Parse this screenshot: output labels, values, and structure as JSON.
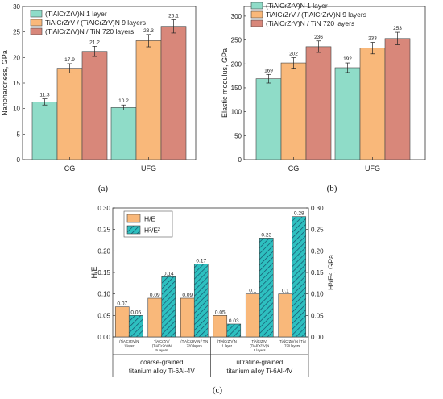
{
  "colors": {
    "teal": "#8fdcc8",
    "orange": "#f9b87a",
    "salmon": "#d8877a",
    "hatch_fill": "#2ec0c0"
  },
  "chart_data": [
    {
      "panel": "(a)",
      "type": "bar",
      "ylabel": "Nanohardness, GPa",
      "ylim": [
        0,
        30
      ],
      "yticks": [
        0,
        5,
        10,
        15,
        20,
        25,
        30
      ],
      "categories": [
        "CG",
        "UFG"
      ],
      "legend_position": "top-left",
      "series": [
        {
          "name": "(TiAlCrZrV)N 1 layer",
          "values": [
            11.3,
            10.2
          ],
          "errors": [
            0.6,
            0.5
          ],
          "labels": [
            "11.3",
            "10.2"
          ]
        },
        {
          "name": "TiAlCrZrV / (TiAlCrZrV)N 9 layers",
          "values": [
            17.9,
            23.3
          ],
          "errors": [
            0.9,
            1.2
          ],
          "labels": [
            "17.9",
            "23.3"
          ]
        },
        {
          "name": "(TiAlCrZrV)N / TiN 720 layers",
          "values": [
            21.2,
            26.1
          ],
          "errors": [
            1.0,
            1.3
          ],
          "labels": [
            "21.2",
            "26.1"
          ]
        }
      ]
    },
    {
      "panel": "(b)",
      "type": "bar",
      "ylabel": "Elastic modulus, GPa",
      "ylim": [
        0,
        320
      ],
      "yticks": [
        0,
        50,
        100,
        150,
        200,
        250,
        300
      ],
      "categories": [
        "CG",
        "UFG"
      ],
      "legend_position": "top-left",
      "series": [
        {
          "name": "(TiAlCrZrV)N 1 layer",
          "values": [
            169,
            192
          ],
          "errors": [
            9,
            10
          ],
          "labels": [
            "169",
            "192"
          ]
        },
        {
          "name": "TiAlCrZrV / (TiAlCrZrV)N 9 layers",
          "values": [
            202,
            233
          ],
          "errors": [
            11,
            12
          ],
          "labels": [
            "202",
            "233"
          ]
        },
        {
          "name": "(TiAlCrZrV)N / TiN 720 layers",
          "values": [
            236,
            253
          ],
          "errors": [
            12,
            13
          ],
          "labels": [
            "236",
            "253"
          ]
        }
      ]
    },
    {
      "panel": "(c)",
      "type": "bar",
      "ylabel": "H/E",
      "ylabel_right": "H³/E², GPa",
      "ylim": [
        0,
        0.3
      ],
      "yticks": [
        "0.00",
        "0.05",
        "0.10",
        "0.15",
        "0.20",
        "0.25",
        "0.30"
      ],
      "yticks_right": [
        "0.00",
        "0.05",
        "0.10",
        "0.15",
        "0.20",
        "0.25",
        "0.30"
      ],
      "ytick_values": [
        0,
        0.05,
        0.1,
        0.15,
        0.2,
        0.25,
        0.3
      ],
      "legend_position": "top-left",
      "categories": [
        [
          "(TiAlCrZrV)N",
          "1 layer"
        ],
        [
          "TiAlCrZrV/",
          "(TiAlCrZrV)N",
          "9 layers"
        ],
        [
          "(TiAlCrZrV)N / TiN",
          "720 layers"
        ],
        [
          "(TiAlCrZrV)N",
          "1 layer"
        ],
        [
          "TiAlCrZrV/",
          "(TiAlCrZrV)N",
          "9 layers"
        ],
        [
          "(TiAlCrZrV)N / TiN",
          "720 layers"
        ]
      ],
      "groups": [
        {
          "lines": [
            "coarse-grained",
            "titanium alloy Ti-6Al-4V"
          ]
        },
        {
          "lines": [
            "ultrafine-grained",
            "titanium alloy Ti-6Al-4V"
          ]
        }
      ],
      "series": [
        {
          "name": "H/E",
          "values": [
            0.07,
            0.09,
            0.09,
            0.05,
            0.1,
            0.1
          ],
          "labels": [
            "0.07",
            "0.09",
            "0.09",
            "0.05",
            "0.1",
            "0.1"
          ]
        },
        {
          "name": "H³/E²",
          "values": [
            0.05,
            0.14,
            0.17,
            0.03,
            0.23,
            0.28
          ],
          "labels": [
            "0.05",
            "0.14",
            "0.17",
            "0.03",
            "0.23",
            "0.28"
          ]
        }
      ]
    }
  ]
}
